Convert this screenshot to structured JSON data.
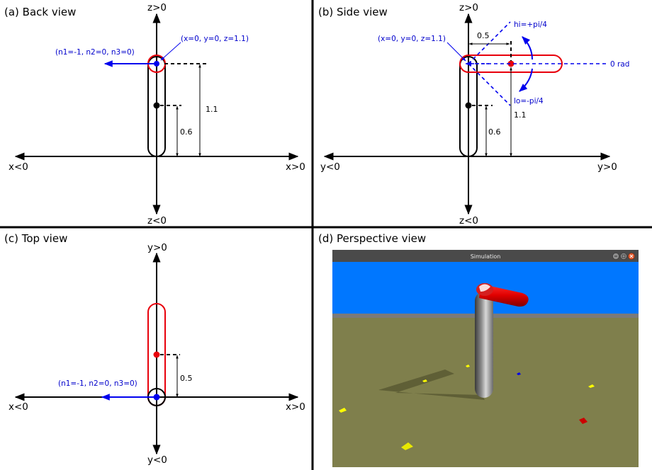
{
  "panels": {
    "back": {
      "title": "(a) Back view",
      "axis_top": "z>0",
      "axis_bottom": "z<0",
      "axis_left": "x<0",
      "axis_right": "x>0",
      "point_label": "(x=0, y=0, z=1.1)",
      "normal_label": "(n1=-1, n2=0, n3=0)",
      "dim_outer": "1.1",
      "dim_inner": "0.6"
    },
    "side": {
      "title": "(b) Side view",
      "axis_top": "z>0",
      "axis_bottom": "z<0",
      "axis_left": "y<0",
      "axis_right": "y>0",
      "point_label": "(x=0, y=0, z=1.1)",
      "dim_horizontal": "0.5",
      "hi_label": "hi=+pi/4",
      "lo_label": "lo=-pi/4",
      "zero_label": "0 rad",
      "dim_outer": "1.1",
      "dim_inner": "0.6"
    },
    "top": {
      "title": "(c) Top view",
      "axis_top": "y>0",
      "axis_bottom": "y<0",
      "axis_left": "x<0",
      "axis_right": "x>0",
      "normal_label": "(n1=-1, n2=0, n3=0)",
      "dim_inner": "0.5"
    },
    "perspective": {
      "title": "(d) Perspective view",
      "window_title": "Simulation"
    }
  },
  "colors": {
    "red": "#e8000b",
    "blue": "#0000ee",
    "label_blue": "#0000cc",
    "sky": "#0077ff",
    "ground": "#7f7f4c",
    "titlebar": "#4a4a4a"
  },
  "icons": [
    "minimize-icon",
    "maximize-icon",
    "close-icon"
  ]
}
